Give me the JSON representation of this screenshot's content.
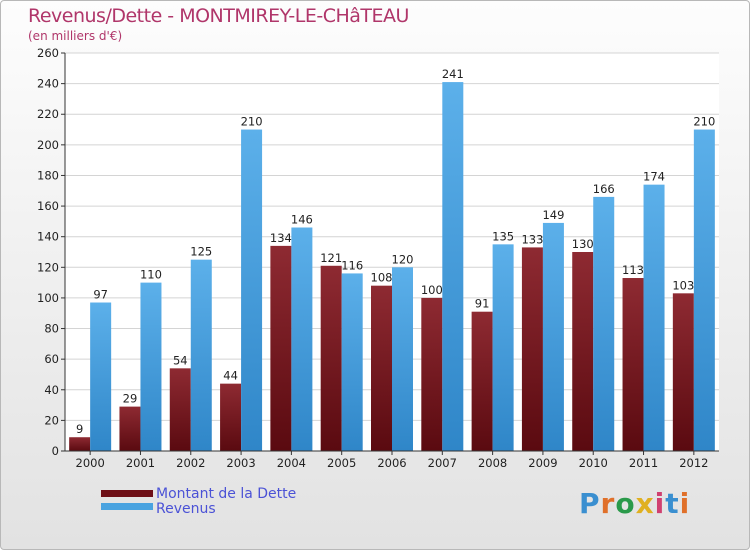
{
  "title": "Revenus/Dette - MONTMIREY-LE-CHâTEAU",
  "subtitle": "(en milliers d'€)",
  "brand": "Proxiti",
  "colors": {
    "title": "#b0366a",
    "dette": "#7a1a20",
    "revenus": "#4aa3e0",
    "legend_text": "#4b52d6"
  },
  "chart_data": {
    "type": "bar",
    "title": "Revenus/Dette - MONTMIREY-LE-CHâTEAU",
    "ylabel": "(en milliers d'€)",
    "xlabel": "",
    "categories": [
      "2000",
      "2001",
      "2002",
      "2003",
      "2004",
      "2005",
      "2006",
      "2007",
      "2008",
      "2009",
      "2010",
      "2011",
      "2012"
    ],
    "series": [
      {
        "name": "Montant de la Dette",
        "values": [
          9,
          29,
          54,
          44,
          134,
          121,
          108,
          100,
          91,
          133,
          130,
          113,
          103
        ]
      },
      {
        "name": "Revenus",
        "values": [
          97,
          110,
          125,
          210,
          146,
          116,
          120,
          241,
          135,
          149,
          166,
          174,
          210
        ]
      }
    ],
    "ylim": [
      0,
      260
    ],
    "yticks": [
      0,
      20,
      40,
      60,
      80,
      100,
      120,
      140,
      160,
      180,
      200,
      220,
      240,
      260
    ],
    "grid": true,
    "legend": "bottom-left"
  }
}
